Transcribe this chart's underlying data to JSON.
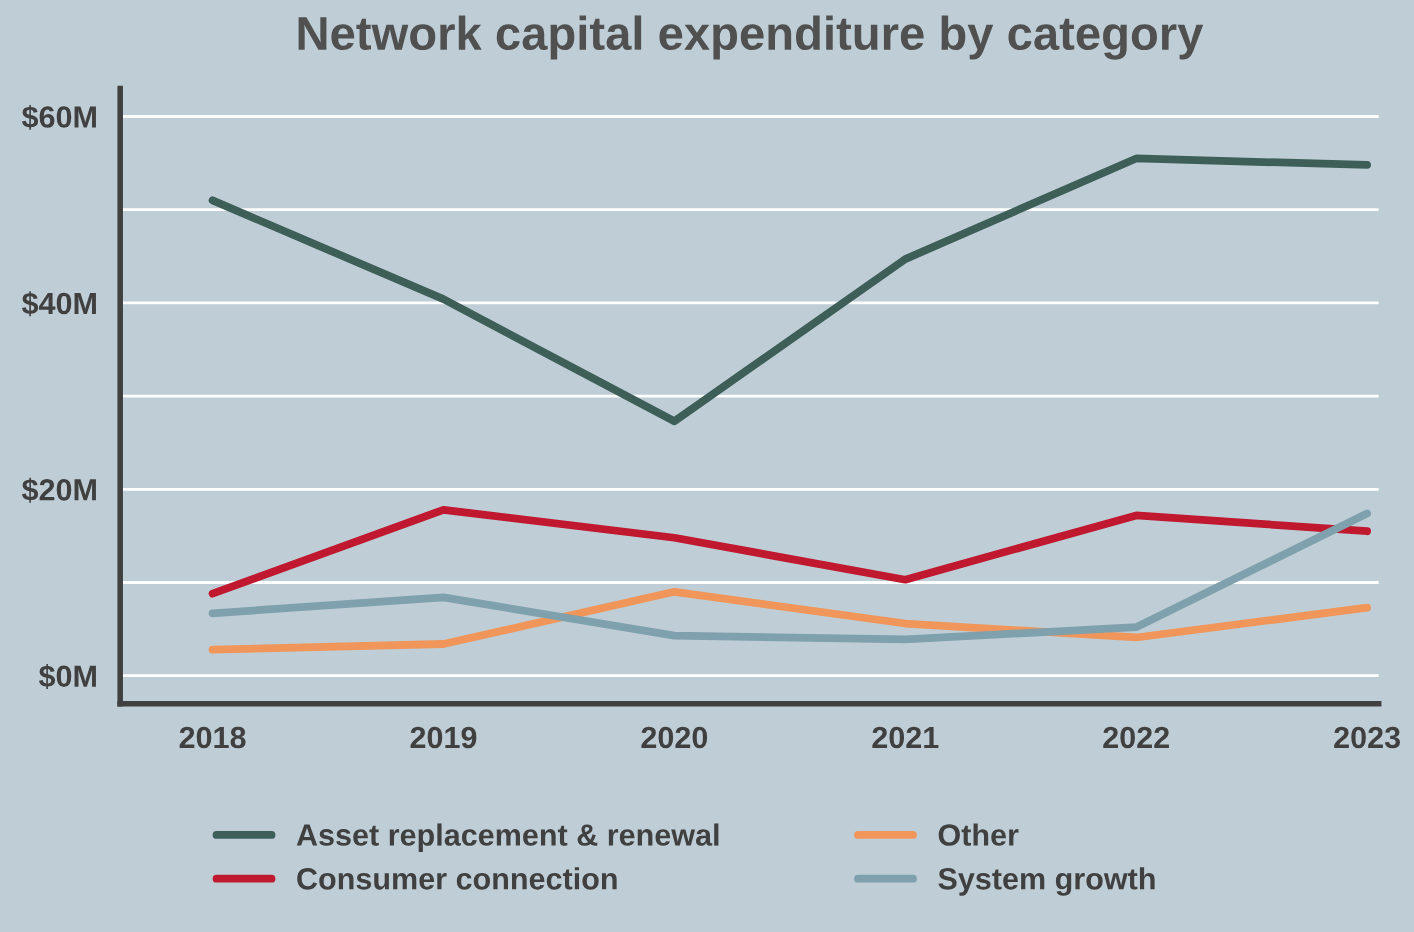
{
  "chart_data": {
    "type": "line",
    "title": "Network capital expenditure by category",
    "categories": [
      "2018",
      "2019",
      "2020",
      "2021",
      "2022",
      "2023"
    ],
    "series": [
      {
        "name": "Asset replacement & renewal",
        "color": "#3d5f58",
        "values": [
          51.0,
          40.4,
          27.3,
          44.7,
          55.5,
          54.8
        ]
      },
      {
        "name": "Consumer connection",
        "color": "#c0182f",
        "values": [
          8.8,
          17.8,
          14.8,
          10.3,
          17.2,
          15.5
        ]
      },
      {
        "name": "Other",
        "color": "#f0965a",
        "values": [
          2.8,
          3.4,
          9.0,
          5.6,
          4.1,
          7.3
        ]
      },
      {
        "name": "System growth",
        "color": "#7fa0ad",
        "values": [
          6.7,
          8.4,
          4.3,
          3.9,
          5.2,
          17.4
        ]
      }
    ],
    "ylim": [
      -3,
      63
    ],
    "yticks": [
      {
        "value": 0,
        "label": "$0M"
      },
      {
        "value": 10,
        "label": null
      },
      {
        "value": 20,
        "label": "$20M"
      },
      {
        "value": 30,
        "label": null
      },
      {
        "value": 40,
        "label": "$40M"
      },
      {
        "value": 50,
        "label": null
      },
      {
        "value": 60,
        "label": "$60M"
      }
    ],
    "grid": "y",
    "legend": "bottom",
    "marker": "none",
    "line_style": "solid"
  }
}
